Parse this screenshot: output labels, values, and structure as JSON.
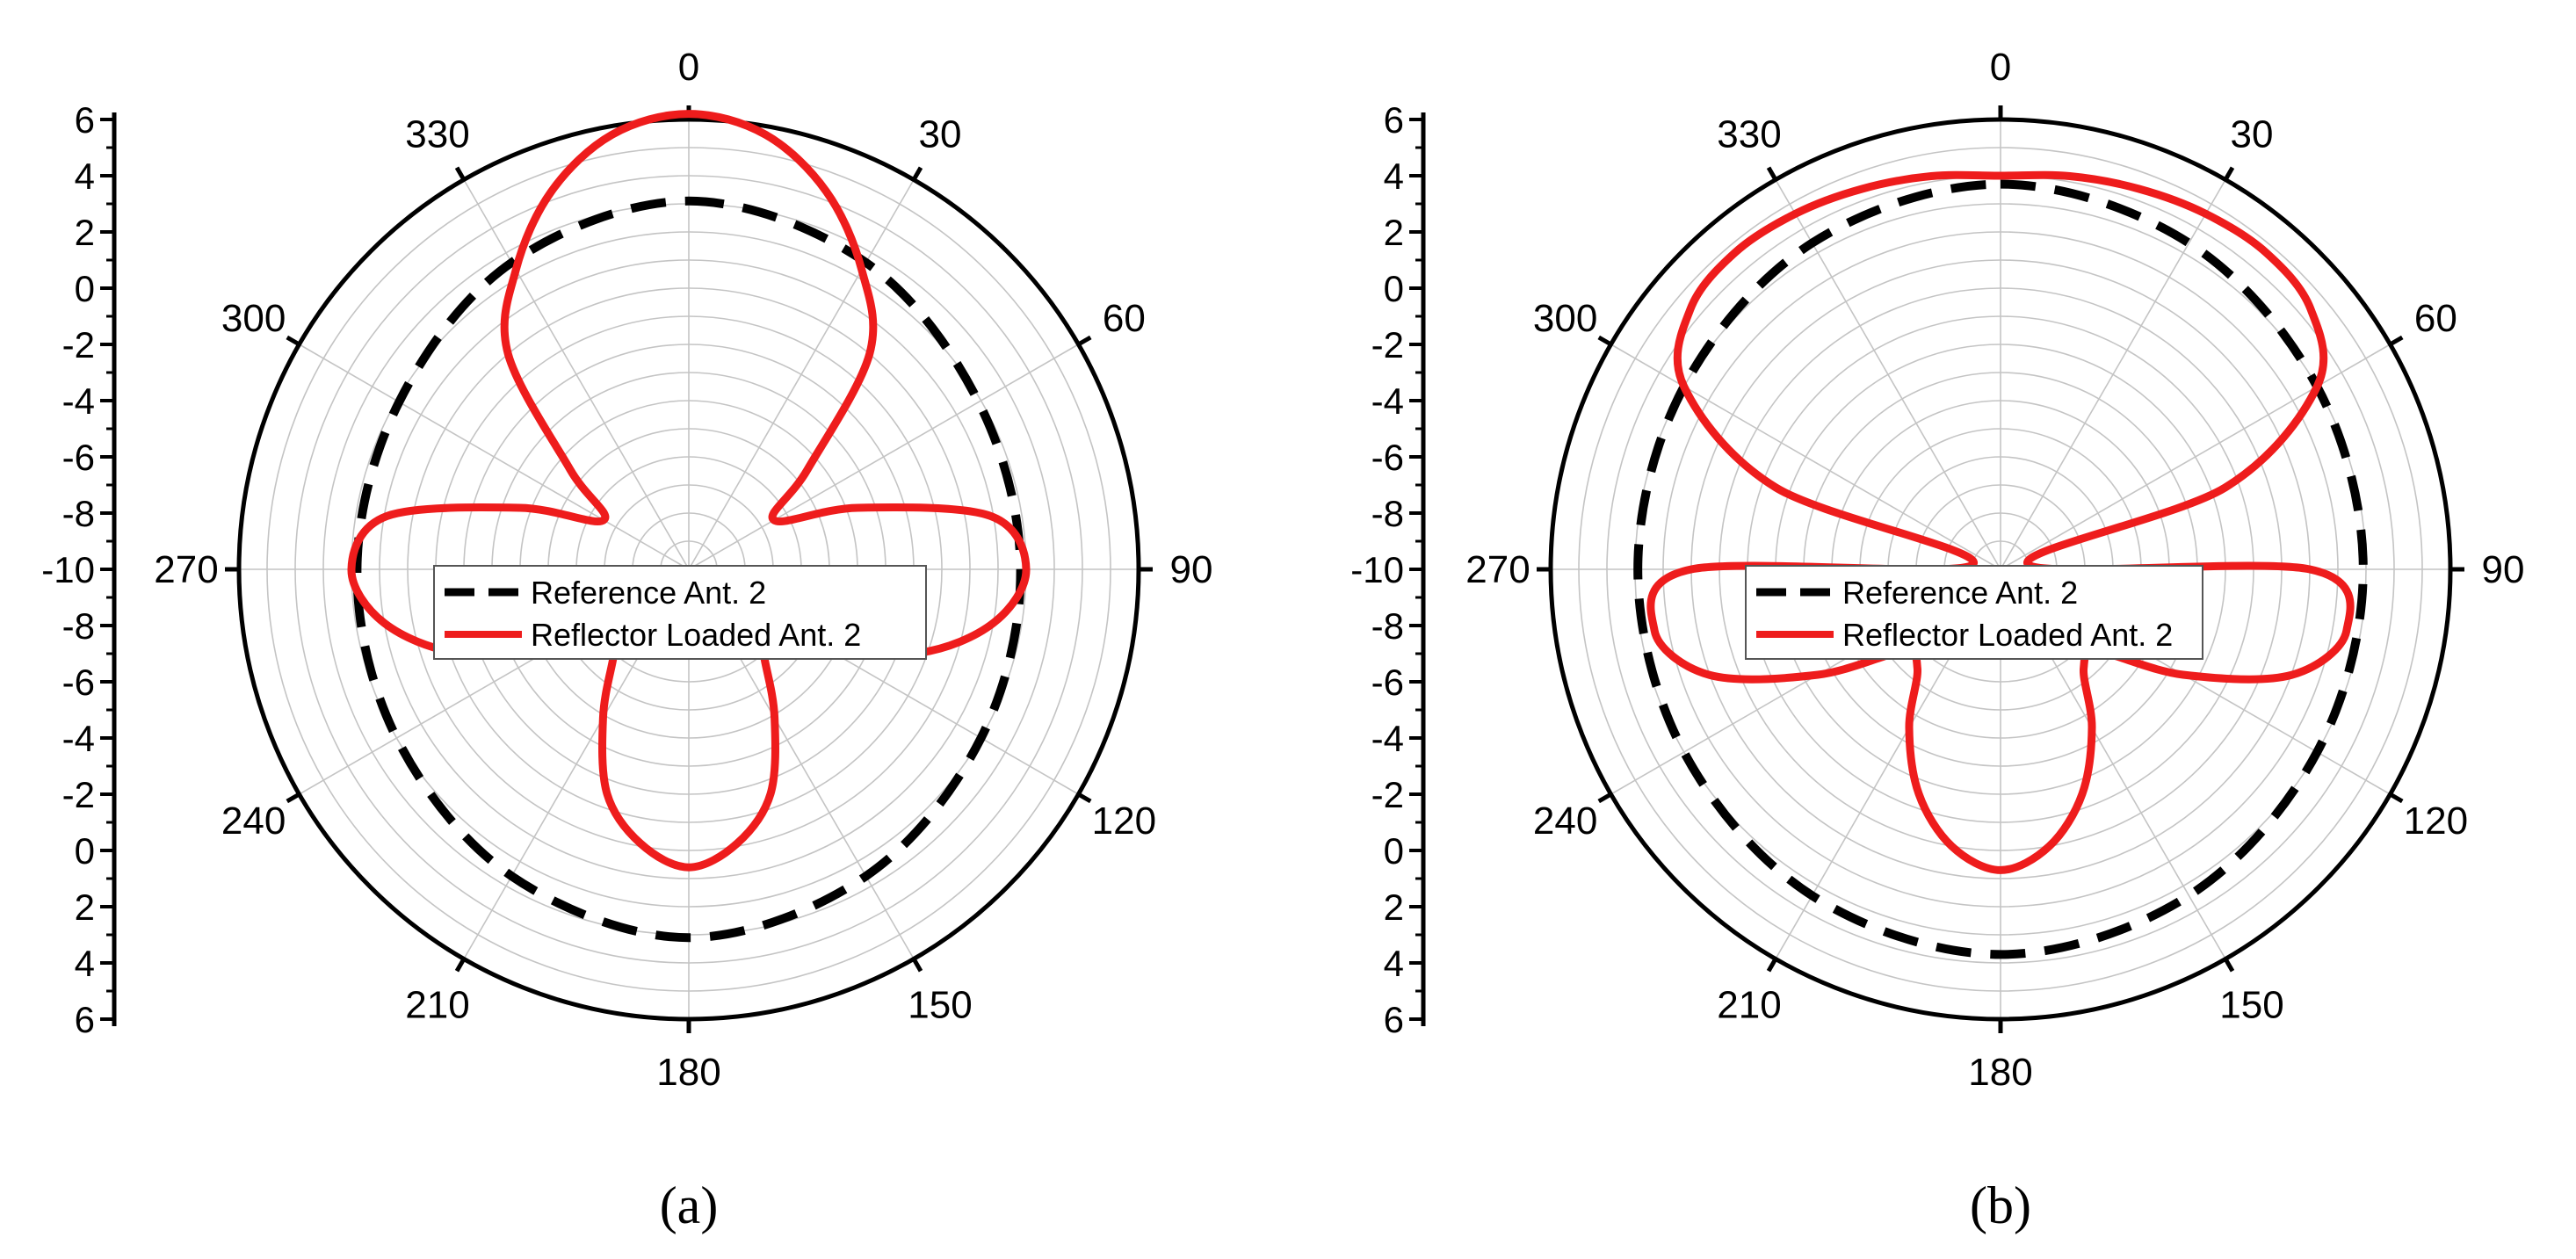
{
  "colors": {
    "reference": "#000000",
    "reflector": "#ee1c1c",
    "grid": "#c4c4c4",
    "axis": "#000000",
    "background": "#ffffff"
  },
  "chart_data": [
    {
      "type": "polar-line",
      "panel_label": "(a)",
      "angle_ticks": [
        "0",
        "30",
        "60",
        "90",
        "120",
        "150",
        "180",
        "210",
        "240",
        "270",
        "300",
        "330"
      ],
      "radial_axis": {
        "min": -10,
        "max": 6,
        "step": 2,
        "upper_tick_labels": [
          "6",
          "4",
          "2",
          "0",
          "-2",
          "-4",
          "-6",
          "-8",
          "-10"
        ],
        "lower_tick_labels": [
          "-8",
          "-6",
          "-4",
          "-2",
          "0",
          "2",
          "4",
          "6"
        ]
      },
      "grid": true,
      "legend": {
        "position": "center",
        "entries": [
          "Reference Ant. 2",
          "Reflector Loaded Ant. 2"
        ]
      },
      "series": [
        {
          "name": "Reference Ant. 2",
          "style": "dashed",
          "theta": [
            0,
            30,
            60,
            90,
            120,
            150,
            180,
            210,
            240,
            270,
            300,
            330,
            360
          ],
          "r": [
            3.1,
            2.6,
            1.9,
            1.8,
            2.0,
            2.6,
            3.1,
            2.6,
            2.0,
            1.8,
            1.9,
            2.6,
            3.1
          ]
        },
        {
          "name": "Reflector Loaded Ant. 2",
          "style": "solid",
          "theta": [
            0,
            10,
            20,
            30,
            40,
            50,
            60,
            70,
            80,
            90,
            100,
            110,
            120,
            130,
            140,
            150,
            160,
            170,
            180,
            190,
            200,
            210,
            220,
            230,
            240,
            250,
            260,
            270,
            280,
            290,
            300,
            310,
            320,
            330,
            340,
            350,
            360
          ],
          "r": [
            6.2,
            5.7,
            4.3,
            2.3,
            0.0,
            -4.5,
            -6.5,
            -3.6,
            0.9,
            2.0,
            1.0,
            -1.3,
            -4.5,
            -6.8,
            -5.8,
            -3.9,
            -1.5,
            -0.1,
            0.6,
            -0.1,
            -1.5,
            -3.9,
            -5.8,
            -6.8,
            -4.5,
            -1.3,
            1.0,
            2.0,
            0.9,
            -3.6,
            -6.5,
            -4.5,
            0.0,
            2.3,
            4.3,
            5.7,
            6.2
          ]
        }
      ]
    },
    {
      "type": "polar-line",
      "panel_label": "(b)",
      "angle_ticks": [
        "0",
        "30",
        "60",
        "90",
        "120",
        "150",
        "180",
        "210",
        "240",
        "270",
        "300",
        "330"
      ],
      "radial_axis": {
        "min": -10,
        "max": 6,
        "step": 2,
        "upper_tick_labels": [
          "6",
          "4",
          "2",
          "0",
          "-2",
          "-4",
          "-6",
          "-8",
          "-10"
        ],
        "lower_tick_labels": [
          "-8",
          "-6",
          "-4",
          "-2",
          "0",
          "2",
          "4",
          "6"
        ]
      },
      "grid": true,
      "legend": {
        "position": "center",
        "entries": [
          "Reference Ant. 2",
          "Reflector Loaded Ant. 2"
        ]
      },
      "series": [
        {
          "name": "Reference Ant. 2",
          "style": "dashed",
          "theta": [
            0,
            30,
            60,
            90,
            120,
            150,
            180,
            210,
            240,
            270,
            300,
            330,
            360
          ],
          "r": [
            3.7,
            3.4,
            3.0,
            2.9,
            3.0,
            3.4,
            3.7,
            3.4,
            3.0,
            2.9,
            3.0,
            3.4,
            3.7
          ]
        },
        {
          "name": "Reflector Loaded Ant. 2",
          "style": "solid",
          "theta": [
            0,
            10,
            20,
            30,
            40,
            50,
            60,
            70,
            80,
            90,
            100,
            110,
            120,
            130,
            140,
            150,
            160,
            170,
            180,
            190,
            200,
            210,
            220,
            230,
            240,
            250,
            260,
            270,
            280,
            290,
            300,
            310,
            320,
            330,
            340,
            350,
            360
          ],
          "r": [
            4.0,
            4.2,
            4.4,
            4.6,
            4.7,
            4.4,
            3.0,
            -1.5,
            -9.0,
            1.0,
            2.5,
            1.0,
            -2.5,
            -5.4,
            -5.4,
            -3.5,
            -1.5,
            0.0,
            0.7,
            0.0,
            -1.5,
            -3.5,
            -5.4,
            -5.4,
            -2.5,
            1.0,
            2.5,
            1.0,
            -9.0,
            -1.5,
            3.0,
            4.4,
            4.7,
            4.6,
            4.4,
            4.2,
            4.0
          ]
        }
      ]
    }
  ]
}
